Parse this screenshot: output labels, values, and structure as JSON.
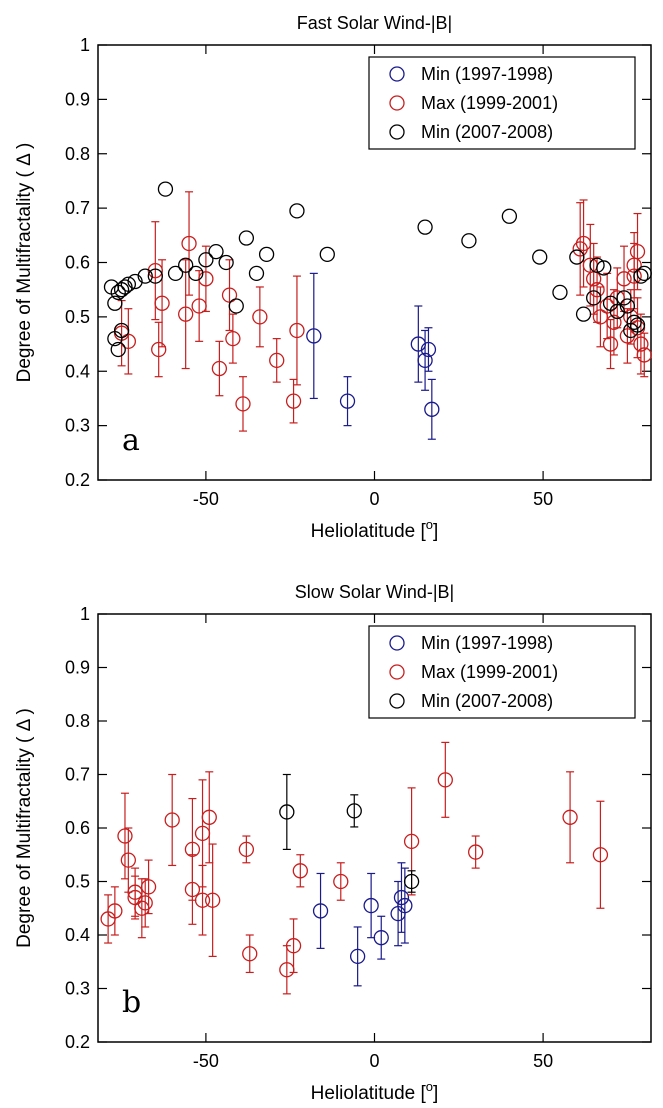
{
  "colors": {
    "min_1997_1998": "#1a1a8c",
    "max_1999_2001": "#c81e1e",
    "min_2007_2008": "#000000",
    "axes": "#000000",
    "background": "#ffffff"
  },
  "chart_data": [
    {
      "type": "scatter",
      "title": "Fast Solar Wind-|B|",
      "panel_label": "a",
      "xlabel": "Heliolatitude [",
      "xlabel_sup": "o",
      "xlabel_end": "]",
      "ylabel": "Degree of Multifractality ( Δ )",
      "xlim": [
        -82,
        82
      ],
      "ylim": [
        0.2,
        1.0
      ],
      "xticks": [
        -50,
        0,
        50
      ],
      "yticks": [
        0.2,
        0.3,
        0.4,
        0.5,
        0.6,
        0.7,
        0.8,
        0.9,
        1.0
      ],
      "ytick_labels": [
        "0.2",
        "0.3",
        "0.4",
        "0.5",
        "0.6",
        "0.7",
        "0.8",
        "0.9",
        "1"
      ],
      "grid": false,
      "legend_position": "top-right",
      "marker": "open-circle",
      "series": [
        {
          "name": "Min (1997-1998)",
          "color_key": "min_1997_1998",
          "x": [
            -18,
            -8,
            13,
            15,
            16,
            17
          ],
          "y": [
            0.465,
            0.345,
            0.45,
            0.42,
            0.44,
            0.33
          ],
          "err": [
            0.115,
            0.045,
            0.07,
            0.055,
            0.04,
            0.055
          ]
        },
        {
          "name": "Max (1999-2001)",
          "color_key": "max_1999_2001",
          "x": [
            -75,
            -73,
            -65,
            -64,
            -63,
            -56,
            -55,
            -52,
            -50,
            -46,
            -43,
            -42,
            -39,
            -34,
            -29,
            -24,
            -23,
            61,
            62,
            64,
            65,
            66,
            67,
            69,
            70,
            71,
            72,
            74,
            75,
            76,
            77,
            77,
            78,
            78,
            79,
            80
          ],
          "y": [
            0.47,
            0.455,
            0.585,
            0.44,
            0.525,
            0.505,
            0.635,
            0.52,
            0.57,
            0.405,
            0.54,
            0.46,
            0.34,
            0.5,
            0.42,
            0.345,
            0.475,
            0.625,
            0.635,
            0.595,
            0.57,
            0.55,
            0.5,
            0.52,
            0.45,
            0.49,
            0.535,
            0.57,
            0.465,
            0.5,
            0.595,
            0.575,
            0.48,
            0.62,
            0.45,
            0.43
          ],
          "err": [
            0.06,
            0.06,
            0.09,
            0.05,
            0.08,
            0.1,
            0.095,
            0.065,
            0.06,
            0.05,
            0.065,
            0.045,
            0.05,
            0.055,
            0.04,
            0.04,
            0.1,
            0.085,
            0.08,
            0.075,
            0.065,
            0.06,
            0.055,
            0.06,
            0.045,
            0.06,
            0.055,
            0.06,
            0.05,
            0.05,
            0.06,
            0.06,
            0.055,
            0.07,
            0.055,
            0.04
          ]
        },
        {
          "name": "Min (2007-2008)",
          "color_key": "min_2007_2008",
          "x": [
            -78,
            -77,
            -77,
            -76,
            -76,
            -75,
            -75,
            -74,
            -73,
            -71,
            -68,
            -65,
            -62,
            -59,
            -56,
            -53,
            -50,
            -47,
            -44,
            -41,
            -38,
            -35,
            -32,
            -23,
            -14,
            15,
            28,
            40,
            49,
            55,
            60,
            62,
            65,
            66,
            68,
            70,
            72,
            74,
            75,
            76,
            77,
            78,
            79,
            80
          ],
          "y": [
            0.555,
            0.46,
            0.525,
            0.545,
            0.44,
            0.55,
            0.475,
            0.555,
            0.56,
            0.565,
            0.575,
            0.575,
            0.735,
            0.58,
            0.595,
            0.58,
            0.605,
            0.62,
            0.6,
            0.52,
            0.645,
            0.58,
            0.615,
            0.695,
            0.615,
            0.665,
            0.64,
            0.685,
            0.61,
            0.545,
            0.61,
            0.505,
            0.535,
            0.595,
            0.59,
            0.525,
            0.51,
            0.535,
            0.52,
            0.475,
            0.49,
            0.485,
            0.575,
            0.58
          ]
        }
      ]
    },
    {
      "type": "scatter",
      "title": "Slow Solar Wind-|B|",
      "panel_label": "b",
      "xlabel": "Heliolatitude [",
      "xlabel_sup": "o",
      "xlabel_end": "]",
      "ylabel": "Degree of Multifractality ( Δ )",
      "xlim": [
        -82,
        82
      ],
      "ylim": [
        0.2,
        1.0
      ],
      "xticks": [
        -50,
        0,
        50
      ],
      "yticks": [
        0.2,
        0.3,
        0.4,
        0.5,
        0.6,
        0.7,
        0.8,
        0.9,
        1.0
      ],
      "ytick_labels": [
        "0.2",
        "0.3",
        "0.4",
        "0.5",
        "0.6",
        "0.7",
        "0.8",
        "0.9",
        "1"
      ],
      "grid": false,
      "legend_position": "top-right",
      "marker": "open-circle",
      "series": [
        {
          "name": "Min (1997-1998)",
          "color_key": "min_1997_1998",
          "x": [
            -16,
            -5,
            -1,
            2,
            7,
            8,
            9
          ],
          "y": [
            0.445,
            0.36,
            0.455,
            0.395,
            0.44,
            0.47,
            0.455
          ],
          "err": [
            0.07,
            0.055,
            0.06,
            0.04,
            0.06,
            0.065,
            0.07
          ]
        },
        {
          "name": "Max (1999-2001)",
          "color_key": "max_1999_2001",
          "x": [
            -79,
            -77,
            -74,
            -73,
            -71,
            -71,
            -69,
            -68,
            -67,
            -60,
            -54,
            -54,
            -51,
            -51,
            -49,
            -48,
            -38,
            -37,
            -26,
            -24,
            -22,
            -10,
            11,
            21,
            30,
            58,
            67
          ],
          "y": [
            0.43,
            0.445,
            0.585,
            0.54,
            0.48,
            0.47,
            0.45,
            0.46,
            0.49,
            0.615,
            0.56,
            0.485,
            0.59,
            0.465,
            0.62,
            0.465,
            0.56,
            0.365,
            0.335,
            0.38,
            0.52,
            0.5,
            0.575,
            0.69,
            0.555,
            0.62,
            0.55
          ],
          "err": [
            0.045,
            0.045,
            0.08,
            0.06,
            0.045,
            0.04,
            0.055,
            0.045,
            0.05,
            0.085,
            0.095,
            0.065,
            0.1,
            0.065,
            0.085,
            0.105,
            0.025,
            0.035,
            0.045,
            0.05,
            0.03,
            0.035,
            0.1,
            0.07,
            0.03,
            0.085,
            0.1
          ]
        },
        {
          "name": "Min (2007-2008)",
          "color_key": "min_2007_2008",
          "x": [
            -26,
            -6,
            11
          ],
          "y": [
            0.63,
            0.632,
            0.5
          ],
          "err": [
            0.07,
            0.03,
            0.02
          ]
        }
      ]
    }
  ]
}
